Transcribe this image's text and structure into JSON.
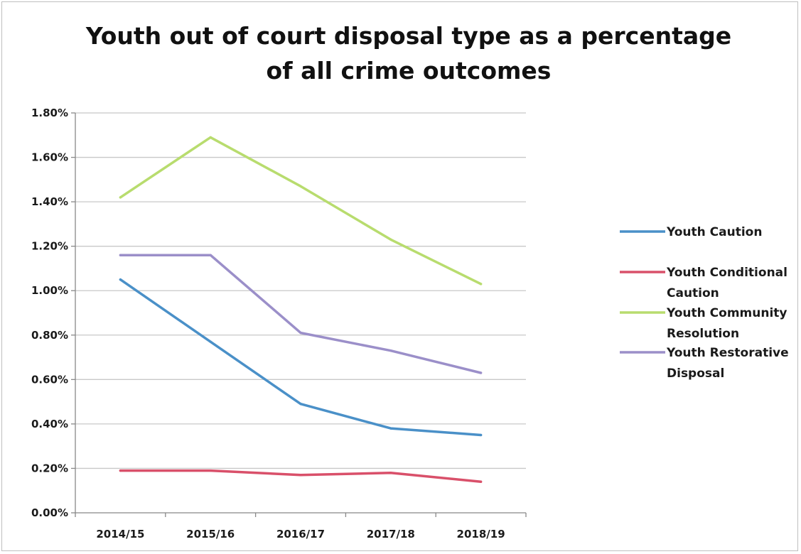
{
  "chart_data": {
    "type": "line",
    "title": "Youth out of court disposal type as a percentage of all crime outcomes",
    "title_lines": [
      "Youth out of court disposal type as a percentage",
      "of all crime outcomes"
    ],
    "xlabel": "",
    "ylabel": "",
    "categories": [
      "2014/15",
      "2015/16",
      "2016/17",
      "2017/18",
      "2018/19"
    ],
    "y_ticks": [
      "0.00%",
      "0.20%",
      "0.40%",
      "0.60%",
      "0.80%",
      "1.00%",
      "1.20%",
      "1.40%",
      "1.60%",
      "1.80%"
    ],
    "ylim": [
      0,
      1.8
    ],
    "y_unit": "%",
    "grid": true,
    "legend_position": "right",
    "series": [
      {
        "name": "Youth Caution",
        "legend_lines": [
          "Youth Caution"
        ],
        "color": "#4a90c8",
        "values": [
          1.05,
          0.77,
          0.49,
          0.38,
          0.35
        ]
      },
      {
        "name": "Youth Conditional Caution",
        "legend_lines": [
          "Youth Conditional",
          "Caution"
        ],
        "color": "#d9506a",
        "values": [
          0.19,
          0.19,
          0.17,
          0.18,
          0.14
        ]
      },
      {
        "name": "Youth Community Resolution",
        "legend_lines": [
          "Youth Community",
          "Resolution"
        ],
        "color": "#b8dc6e",
        "values": [
          1.42,
          1.69,
          1.47,
          1.23,
          1.03
        ]
      },
      {
        "name": "Youth Restorative Disposal",
        "legend_lines": [
          "Youth Restorative",
          "Disposal"
        ],
        "color": "#9b8fc9",
        "values": [
          1.16,
          1.16,
          0.81,
          0.73,
          0.63
        ]
      }
    ]
  }
}
